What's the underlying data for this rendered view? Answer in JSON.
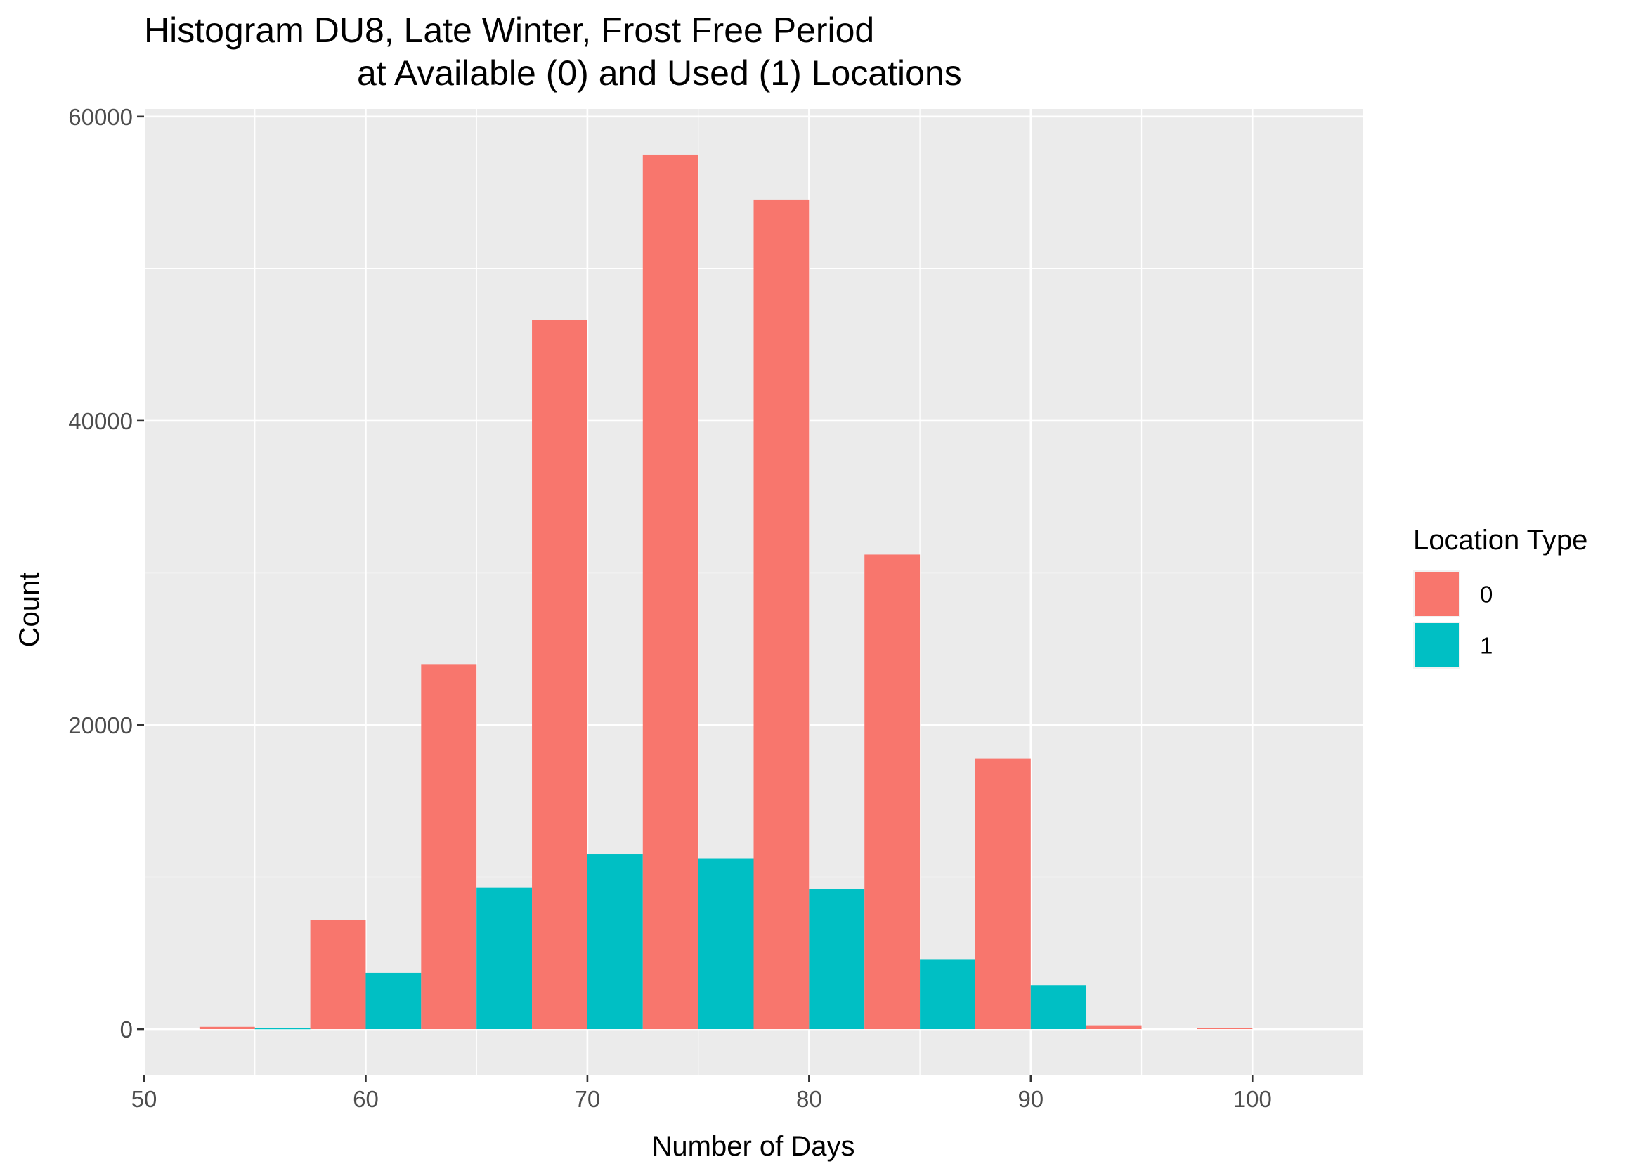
{
  "chart_data": {
    "type": "bar",
    "title_line1": "Histogram DU8, Late Winter, Frost Free Period",
    "title_line2": "at Available (0) and Used (1) Locations",
    "xlabel": "Number of Days",
    "ylabel": "Count",
    "xlim": [
      50,
      105
    ],
    "ylim": [
      -3000,
      60500
    ],
    "x_ticks": [
      50,
      60,
      70,
      80,
      90,
      100
    ],
    "y_ticks": [
      0,
      20000,
      40000,
      60000
    ],
    "bin_width": 5,
    "grid": true,
    "legend": {
      "title": "Location Type",
      "position": "right"
    },
    "categories": [
      55,
      60,
      65,
      70,
      75,
      80,
      85,
      90,
      95,
      100
    ],
    "series": [
      {
        "name": "0",
        "color": "#F8766D",
        "values": [
          150,
          7200,
          24000,
          46600,
          57500,
          54500,
          31200,
          17800,
          250,
          80
        ]
      },
      {
        "name": "1",
        "color": "#00BFC4",
        "values": [
          60,
          3700,
          9300,
          11500,
          11200,
          9200,
          4600,
          2900,
          0,
          0
        ]
      }
    ]
  }
}
